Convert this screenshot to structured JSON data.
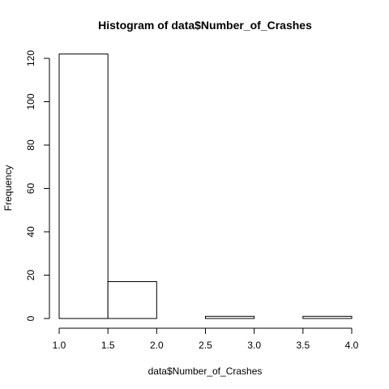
{
  "chart_data": {
    "type": "bar",
    "title": "Histogram of data$Number_of_Crashes",
    "xlabel": "data$Number_of_Crashes",
    "ylabel": "Frequency",
    "bins": [
      {
        "start": 1.0,
        "end": 1.5,
        "count": 122
      },
      {
        "start": 1.5,
        "end": 2.0,
        "count": 17
      },
      {
        "start": 2.0,
        "end": 2.5,
        "count": 0
      },
      {
        "start": 2.5,
        "end": 3.0,
        "count": 1
      },
      {
        "start": 3.0,
        "end": 3.5,
        "count": 0
      },
      {
        "start": 3.5,
        "end": 4.0,
        "count": 1
      }
    ],
    "xlim": [
      1.0,
      4.0
    ],
    "ylim": [
      0,
      120
    ],
    "x_ticks": [
      "1.0",
      "1.5",
      "2.0",
      "2.5",
      "3.0",
      "3.5",
      "4.0"
    ],
    "y_ticks": [
      "0",
      "20",
      "40",
      "60",
      "80",
      "100",
      "120"
    ],
    "grid": false,
    "bar_fill": "#ffffff",
    "bar_stroke": "#000000"
  }
}
